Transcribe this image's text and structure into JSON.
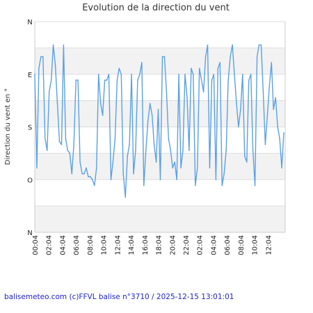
{
  "chart_data": {
    "type": "line",
    "title": "Evolution de la direction du vent",
    "ylabel": "Direction du vent en °",
    "y_tick_labels": [
      "N",
      "E",
      "S",
      "O",
      "N"
    ],
    "y_tick_values": [
      0,
      90,
      180,
      270,
      360
    ],
    "ylim": [
      0,
      360
    ],
    "x_tick_labels": [
      "00:04",
      "02:04",
      "04:04",
      "06:04",
      "08:04",
      "10:04",
      "12:04",
      "14:04",
      "16:04",
      "18:04",
      "20:04",
      "22:04",
      "02:04",
      "04:04",
      "06:04",
      "08:04",
      "10:04",
      "12:04"
    ],
    "xlim": [
      0,
      36.5
    ],
    "grid": true,
    "series": [
      {
        "color": "#5aa0e6",
        "x": [
          0.0,
          0.3,
          0.6,
          0.9,
          1.2,
          1.5,
          1.8,
          2.1,
          2.4,
          2.7,
          3.0,
          3.3,
          3.6,
          3.9,
          4.2,
          4.5,
          4.8,
          5.1,
          5.4,
          5.7,
          6.0,
          6.3,
          6.6,
          6.9,
          7.2,
          7.5,
          7.8,
          8.1,
          8.4,
          8.7,
          9.0,
          9.3,
          9.6,
          9.9,
          10.2,
          10.5,
          10.8,
          11.1,
          11.4,
          11.7,
          12.0,
          12.3,
          12.6,
          12.9,
          13.2,
          13.5,
          13.8,
          14.1,
          14.4,
          14.7,
          15.0,
          15.3,
          15.6,
          15.9,
          16.2,
          16.5,
          16.8,
          17.1,
          17.4,
          17.7,
          18.0,
          18.3,
          18.6,
          18.9,
          19.2,
          19.5,
          19.8,
          20.1,
          20.4,
          20.7,
          21.0,
          21.3,
          21.6,
          21.9,
          22.2,
          22.5,
          22.8,
          23.1,
          23.4,
          23.7,
          24.0,
          24.3,
          24.6,
          24.9,
          25.2,
          25.5,
          25.8,
          26.1,
          26.4,
          26.7,
          27.0,
          27.3,
          27.6,
          27.9,
          28.2,
          28.5,
          28.8,
          29.1,
          29.4,
          29.7,
          30.0,
          30.3,
          30.6,
          30.9,
          31.2,
          31.5,
          31.8,
          32.1,
          32.4,
          32.7,
          33.0,
          33.3,
          33.6,
          33.9,
          34.2,
          34.5,
          34.8,
          35.1,
          35.4,
          35.7,
          36.0,
          36.3
        ],
        "values": [
          90,
          250,
          80,
          60,
          60,
          200,
          220,
          120,
          100,
          40,
          75,
          140,
          205,
          210,
          40,
          200,
          220,
          225,
          260,
          210,
          100,
          100,
          240,
          260,
          260,
          250,
          265,
          265,
          270,
          280,
          250,
          90,
          140,
          160,
          100,
          100,
          90,
          270,
          240,
          200,
          100,
          80,
          90,
          260,
          300,
          230,
          210,
          90,
          260,
          220,
          100,
          90,
          70,
          280,
          220,
          170,
          140,
          160,
          210,
          240,
          150,
          270,
          60,
          60,
          120,
          200,
          220,
          250,
          240,
          270,
          90,
          250,
          220,
          90,
          130,
          220,
          80,
          90,
          280,
          250,
          80,
          100,
          120,
          60,
          40,
          250,
          100,
          90,
          270,
          80,
          70,
          280,
          260,
          220,
          100,
          60,
          40,
          90,
          140,
          180,
          150,
          90,
          230,
          240,
          100,
          90,
          220,
          280,
          60,
          40,
          40,
          120,
          210,
          160,
          110,
          70,
          150,
          130,
          180,
          200,
          250,
          190
        ]
      }
    ]
  },
  "footer": {
    "text": "balisemeteo.com (c)FFVL balise n°3710 / 2025-12-15 13:01:01"
  }
}
